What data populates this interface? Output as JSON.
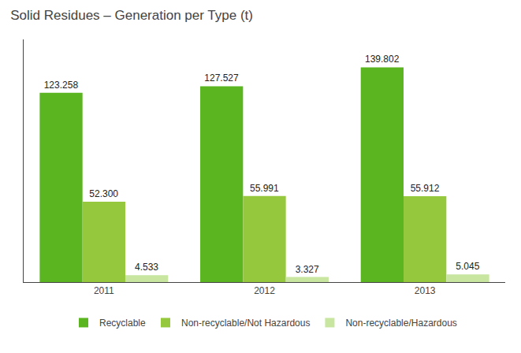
{
  "chart_data": {
    "type": "bar",
    "title": "Solid Residues – Generation per Type (t)",
    "categories": [
      "2011",
      "2012",
      "2013"
    ],
    "series": [
      {
        "name": "Recyclable",
        "color": "#5ab521",
        "values": [
          123.258,
          127.527,
          139.802
        ],
        "value_labels": [
          "123.258",
          "127.527",
          "139.802"
        ]
      },
      {
        "name": "Non-recyclable/Not Hazardous",
        "color": "#96c83d",
        "values": [
          52.3,
          55.991,
          55.912
        ],
        "value_labels": [
          "52.300",
          "55.991",
          "55.912"
        ]
      },
      {
        "name": "Non-recyclable/Hazardous",
        "color": "#c8e6a0",
        "values": [
          4.533,
          3.327,
          5.045
        ],
        "value_labels": [
          "4.533",
          "3.327",
          "5.045"
        ]
      }
    ],
    "ylim": [
      0,
      158
    ],
    "yticks": [],
    "grid": false,
    "legend": "bottom",
    "data_labels": true,
    "tick_labels": "x"
  }
}
